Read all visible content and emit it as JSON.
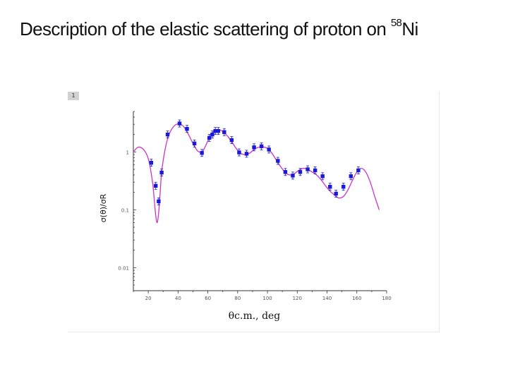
{
  "slide": {
    "title_text": "Description of the elastic scattering of proton on",
    "title_sup": "58",
    "title_element": "Ni",
    "page_badge": "1"
  },
  "chart_data": {
    "type": "scatter",
    "xlabel": "θc.m., deg",
    "ylabel": "σ(θ)/σR",
    "xlim": [
      10,
      180
    ],
    "ylim": [
      0.004,
      5
    ],
    "y_scale": "log",
    "x_ticks": [
      20,
      40,
      60,
      80,
      100,
      120,
      140,
      160,
      180
    ],
    "y_ticks": [
      {
        "value": 1,
        "label": "1"
      },
      {
        "value": 0.1,
        "label": "0.1"
      },
      {
        "value": 0.01,
        "label": "0.01"
      }
    ],
    "grid": false,
    "colors": {
      "data": "#1a1ad6",
      "fit": "#cc33cc"
    },
    "series": [
      {
        "kind": "experimental",
        "marker": "square",
        "x": [
          22,
          25,
          27,
          29,
          33,
          41,
          46,
          51,
          56,
          61,
          63,
          65,
          67,
          71,
          76,
          81,
          86,
          91,
          96,
          101,
          107,
          112,
          117,
          122,
          127,
          132,
          137,
          142,
          146,
          151,
          156,
          161
        ],
        "y": [
          0.65,
          0.26,
          0.14,
          0.44,
          2.0,
          3.1,
          2.5,
          1.4,
          0.96,
          1.75,
          2.0,
          2.3,
          2.3,
          2.2,
          1.6,
          0.98,
          0.93,
          1.2,
          1.25,
          1.1,
          0.7,
          0.45,
          0.39,
          0.45,
          0.5,
          0.48,
          0.38,
          0.25,
          0.19,
          0.25,
          0.38,
          0.48
        ]
      },
      {
        "kind": "calculation",
        "x": [
          10,
          13,
          16,
          19,
          21,
          23,
          24,
          25,
          26,
          27,
          28,
          29,
          31,
          33,
          35,
          38,
          41,
          44,
          47,
          50,
          53,
          56,
          58,
          60,
          62,
          64,
          66,
          68,
          70,
          73,
          76,
          79,
          82,
          85,
          88,
          91,
          94,
          97,
          100,
          103,
          106,
          109,
          112,
          115,
          118,
          121,
          124,
          127,
          130,
          133,
          136,
          139,
          142,
          145,
          148,
          151,
          154,
          157,
          160,
          163,
          166,
          169,
          172,
          175
        ],
        "y": [
          1.0,
          1.2,
          1.15,
          0.9,
          0.6,
          0.28,
          0.15,
          0.08,
          0.06,
          0.09,
          0.2,
          0.45,
          1.0,
          1.7,
          2.3,
          2.9,
          3.05,
          2.7,
          2.0,
          1.4,
          1.05,
          1.0,
          1.2,
          1.55,
          1.95,
          2.25,
          2.4,
          2.4,
          2.25,
          1.9,
          1.5,
          1.15,
          0.95,
          0.9,
          0.95,
          1.1,
          1.2,
          1.22,
          1.15,
          0.95,
          0.72,
          0.55,
          0.44,
          0.4,
          0.42,
          0.48,
          0.52,
          0.5,
          0.45,
          0.4,
          0.33,
          0.26,
          0.21,
          0.18,
          0.16,
          0.17,
          0.22,
          0.32,
          0.45,
          0.52,
          0.45,
          0.3,
          0.17,
          0.1
        ]
      }
    ]
  }
}
